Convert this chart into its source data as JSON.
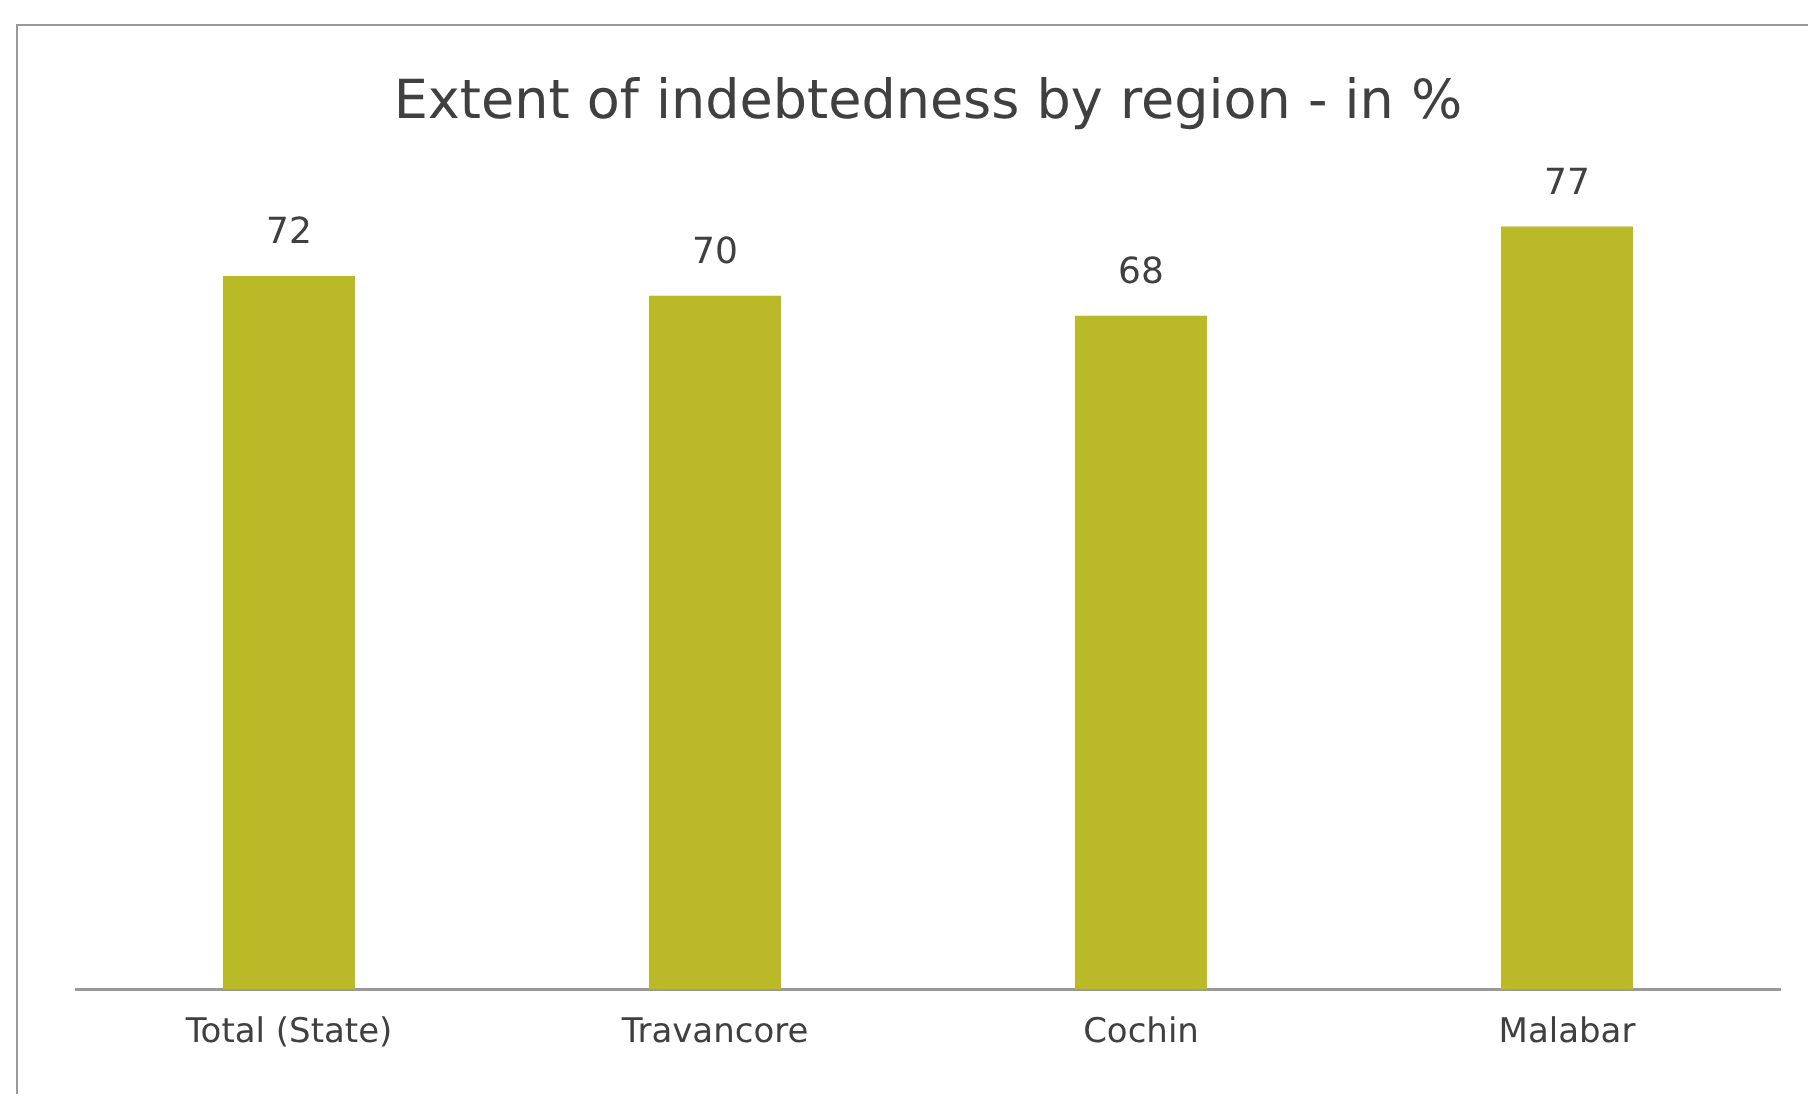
{
  "chart_data": {
    "type": "bar",
    "title": "Extent of indebtedness by region - in %",
    "categories": [
      "Total (State)",
      "Travancore",
      "Cochin",
      "Malabar"
    ],
    "values": [
      72,
      70,
      68,
      77
    ],
    "color": "#bab927",
    "data_labels": true,
    "grid": false,
    "tick_labels": "x"
  }
}
